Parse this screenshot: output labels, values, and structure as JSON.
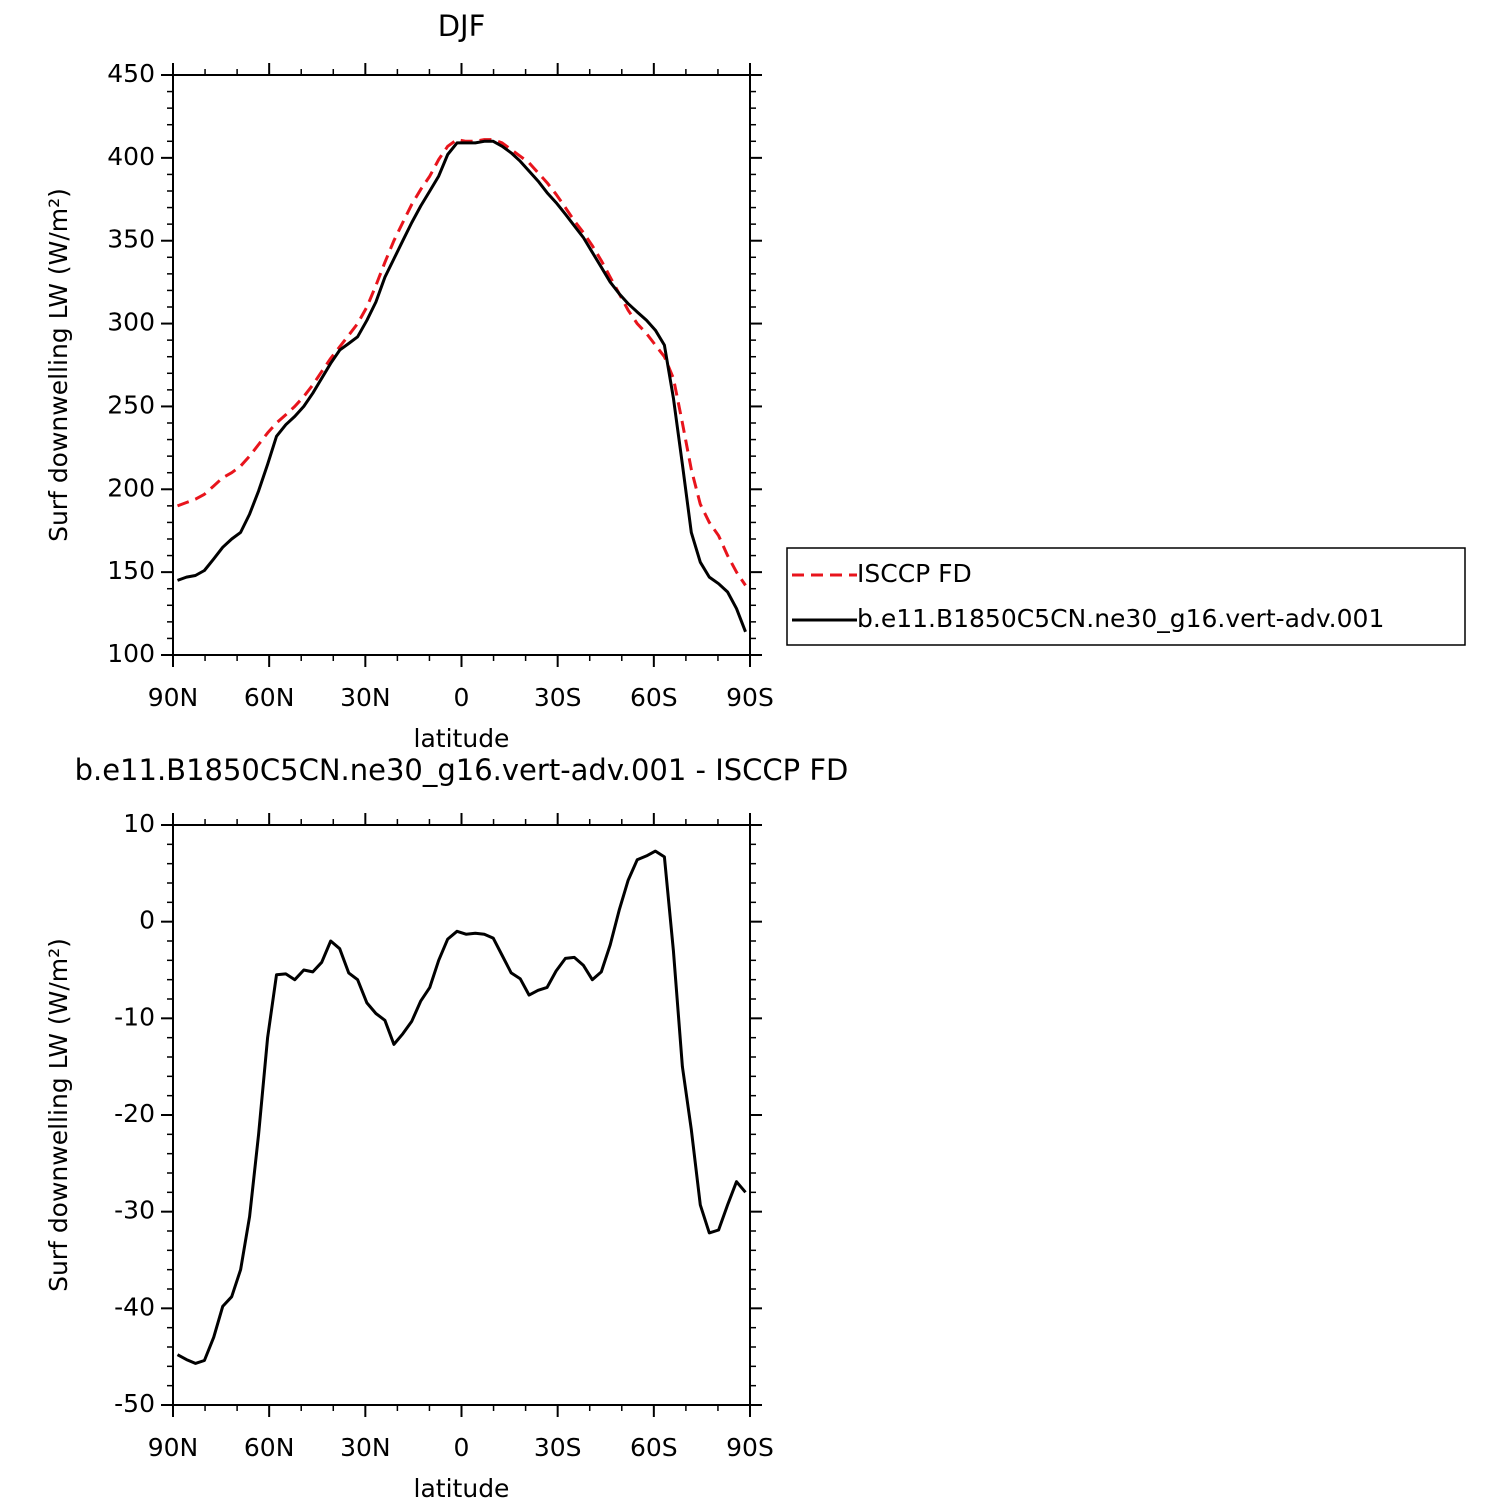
{
  "chart_data": [
    {
      "type": "line",
      "title": "DJF",
      "ylabel": "Surf downwelling LW (W/m²)",
      "xlabel": "latitude",
      "x": [
        88.6,
        85.8,
        83.0,
        80.2,
        77.3,
        74.5,
        71.7,
        68.9,
        66.1,
        63.3,
        60.5,
        57.7,
        54.8,
        52.0,
        49.2,
        46.4,
        43.6,
        40.8,
        38.0,
        35.2,
        32.4,
        29.5,
        26.7,
        23.9,
        21.1,
        18.3,
        15.5,
        12.7,
        9.9,
        7.1,
        4.3,
        1.4,
        -1.4,
        -4.3,
        -7.1,
        -9.9,
        -12.7,
        -15.5,
        -18.3,
        -21.1,
        -23.9,
        -26.7,
        -29.5,
        -32.4,
        -35.2,
        -38.0,
        -40.8,
        -43.6,
        -46.4,
        -49.2,
        -52.0,
        -54.8,
        -57.7,
        -60.5,
        -63.3,
        -66.1,
        -68.9,
        -71.7,
        -74.5,
        -77.3,
        -80.2,
        -83.0,
        -85.8,
        -88.6
      ],
      "series": [
        {
          "name": "ISCCP FD",
          "color": "#e8141c",
          "dash": "dashed",
          "values": [
            190,
            192,
            194,
            197,
            202,
            207,
            210,
            214,
            220,
            227,
            234,
            240,
            245,
            250,
            256,
            263,
            271,
            279,
            286,
            293,
            300,
            310,
            323,
            337,
            350,
            361,
            372,
            381,
            389,
            399,
            407,
            411,
            410,
            410,
            411,
            411,
            409,
            405,
            401,
            397,
            391,
            385,
            378,
            370,
            362,
            355,
            347,
            338,
            328,
            318,
            308,
            300,
            294,
            287,
            280,
            267,
            240,
            212,
            191,
            180,
            172,
            160,
            150,
            142
          ]
        },
        {
          "name": "b.e11.B1850C5CN.ne30_g16.vert-adv.001",
          "color": "#000000",
          "dash": "solid",
          "values": [
            145,
            147,
            148,
            151,
            158,
            165,
            170,
            174,
            185,
            199,
            215,
            232,
            239,
            244,
            250,
            258,
            267,
            276,
            284,
            288,
            292,
            302,
            313,
            328,
            339,
            350,
            361,
            371,
            380,
            389,
            402,
            409,
            409,
            409,
            410,
            410,
            407,
            403,
            398,
            392,
            386,
            379,
            373,
            366,
            359,
            352,
            343,
            334,
            325,
            318,
            312,
            307,
            302,
            296,
            287,
            255,
            215,
            174,
            156,
            147,
            143,
            138,
            128,
            114
          ]
        }
      ],
      "xlim": [
        90,
        -90
      ],
      "xticks": [
        {
          "value": 90,
          "label": "90N"
        },
        {
          "value": 60,
          "label": "60N"
        },
        {
          "value": 30,
          "label": "30N"
        },
        0,
        {
          "value": -30,
          "label": "30S"
        },
        {
          "value": -60,
          "label": "60S"
        },
        {
          "value": -90,
          "label": "90S"
        }
      ],
      "ylim": [
        100,
        450
      ],
      "yticks": [
        100,
        150,
        200,
        250,
        300,
        350,
        400,
        450
      ],
      "legend": "outside-right"
    },
    {
      "type": "line",
      "title": "b.e11.B1850C5CN.ne30_g16.vert-adv.001 - ISCCP FD",
      "ylabel": "Surf downwelling LW (W/m²)",
      "xlabel": "latitude",
      "x": [
        88.6,
        85.8,
        83.0,
        80.2,
        77.3,
        74.5,
        71.7,
        68.9,
        66.1,
        63.3,
        60.5,
        57.7,
        54.8,
        52.0,
        49.2,
        46.4,
        43.6,
        40.8,
        38.0,
        35.2,
        32.4,
        29.5,
        26.7,
        23.9,
        21.1,
        18.3,
        15.5,
        12.7,
        9.9,
        7.1,
        4.3,
        1.4,
        -1.4,
        -4.3,
        -7.1,
        -9.9,
        -12.7,
        -15.5,
        -18.3,
        -21.1,
        -23.9,
        -26.7,
        -29.5,
        -32.4,
        -35.2,
        -38.0,
        -40.8,
        -43.6,
        -46.4,
        -49.2,
        -52.0,
        -54.8,
        -57.7,
        -60.5,
        -63.3,
        -66.1,
        -68.9,
        -71.7,
        -74.5,
        -77.3,
        -80.2,
        -83.0,
        -85.8,
        -88.6
      ],
      "values": [
        -44.8,
        -45.3,
        -45.7,
        -45.4,
        -43,
        -39.8,
        -38.8,
        -36,
        -30.5,
        -22,
        -12,
        -5.5,
        -5.4,
        -6,
        -5,
        -5.2,
        -4.2,
        -2,
        -2.8,
        -5.3,
        -6,
        -8.4,
        -9.5,
        -10.2,
        -12.7,
        -11.6,
        -10.3,
        -8.2,
        -6.8,
        -4,
        -1.8,
        -1,
        -1.3,
        -1.2,
        -1.3,
        -1.7,
        -3.5,
        -5.3,
        -5.9,
        -7.6,
        -7.1,
        -6.8,
        -5.1,
        -3.8,
        -3.7,
        -4.5,
        -6,
        -5.2,
        -2.4,
        1.2,
        4.3,
        6.4,
        6.8,
        7.3,
        6.7,
        -3,
        -15,
        -21.5,
        -29.3,
        -32.2,
        -31.9,
        -29.3,
        -26.9,
        -28
      ],
      "color": "#000000",
      "xlim": [
        90,
        -90
      ],
      "xticks": [
        {
          "value": 90,
          "label": "90N"
        },
        {
          "value": 60,
          "label": "60N"
        },
        {
          "value": 30,
          "label": "30N"
        },
        0,
        {
          "value": -30,
          "label": "30S"
        },
        {
          "value": -60,
          "label": "60S"
        },
        {
          "value": -90,
          "label": "90S"
        }
      ],
      "ylim": [
        -50,
        10
      ],
      "yticks": [
        -50,
        -40,
        -30,
        -20,
        -10,
        0,
        10
      ]
    }
  ]
}
